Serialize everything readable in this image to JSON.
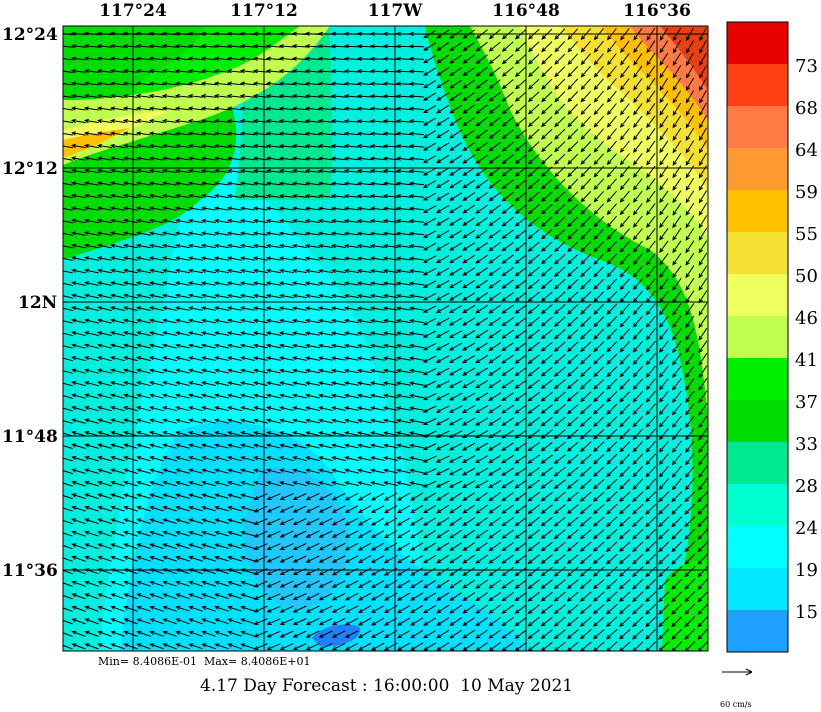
{
  "map": {
    "lon_labels": [
      "117°24",
      "117°12",
      "117W",
      "116°48",
      "116°36"
    ],
    "lat_labels": [
      "12°24",
      "12°12",
      "12N",
      "11°48",
      "11°36"
    ]
  },
  "legend": {
    "labels": [
      "73",
      "68",
      "64",
      "59",
      "55",
      "50",
      "46",
      "41",
      "37",
      "33",
      "28",
      "24",
      "19",
      "15"
    ],
    "colors": [
      "#e80000",
      "#ff4012",
      "#ff7a44",
      "#ff9a30",
      "#ffc000",
      "#f4e030",
      "#f0ff60",
      "#c0ff50",
      "#00ee00",
      "#00dd00",
      "#00e890",
      "#00ffd0",
      "#00ffff",
      "#00e8ff",
      "#1ea0ff"
    ]
  },
  "footer": {
    "minmax": "Min= 8.4086E-01  Max= 8.4086E+01",
    "forecast": "4.17 Day Forecast : 16:00:00  10 May 2021",
    "ref_vector": "60 cm/s"
  }
}
